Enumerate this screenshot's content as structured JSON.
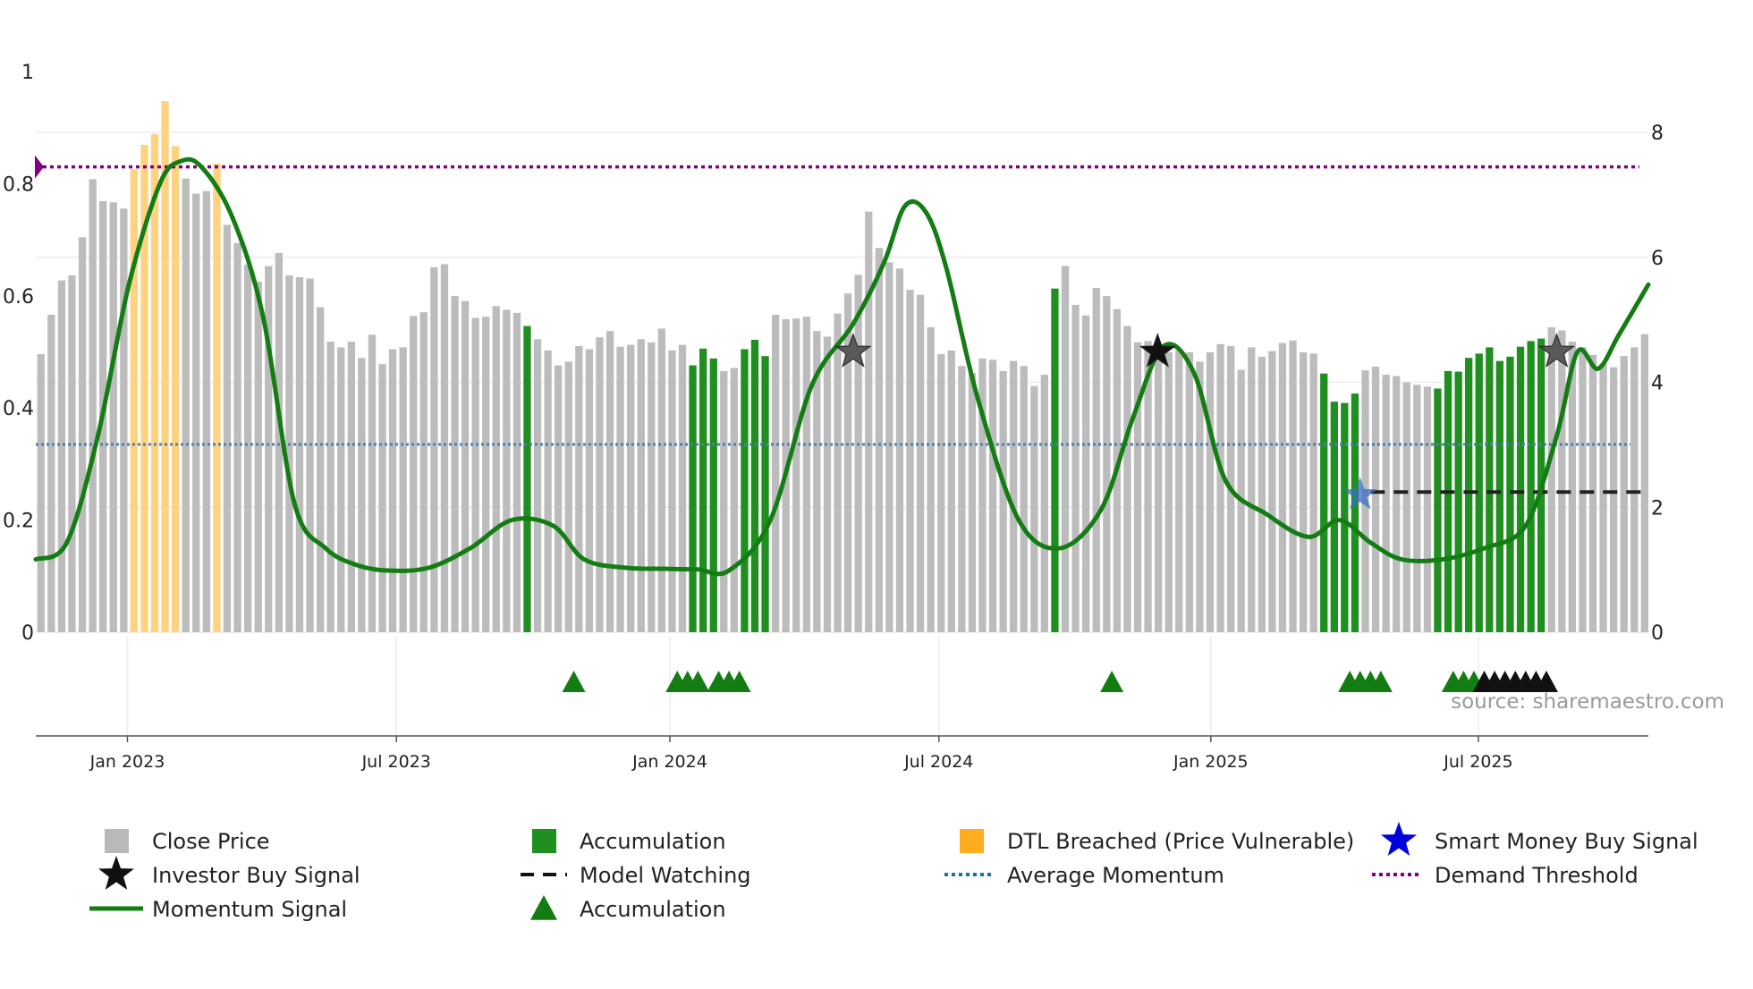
{
  "chart_data": {
    "type": "bar",
    "title": "",
    "source_text": "source: sharemaestro.com",
    "x_range": [
      "2022-10-29",
      "2025-10-24"
    ],
    "left_axis": {
      "ticks": [
        0,
        0.2,
        0.4,
        0.6,
        0.8,
        1
      ],
      "ylim": [
        0,
        1
      ],
      "role": "momentum / threshold scale"
    },
    "right_axis": {
      "ticks": [
        0,
        2,
        4,
        6,
        8
      ],
      "ylim": [
        0,
        8.9
      ],
      "role": "close price scale"
    },
    "x_ticks": [
      {
        "date": "2022-12-30",
        "label": "Jan 2023"
      },
      {
        "date": "2023-06-30",
        "label": "Jul 2023"
      },
      {
        "date": "2024-01-01",
        "label": "Jan 2024"
      },
      {
        "date": "2024-07-01",
        "label": "Jul 2024"
      },
      {
        "date": "2025-01-01",
        "label": "Jan 2025"
      },
      {
        "date": "2025-07-01",
        "label": "Jul 2025"
      }
    ],
    "bars": {
      "start_date": "2022-10-29",
      "interval_days": 7,
      "close_price": [
        4.45,
        5.08,
        5.63,
        5.71,
        6.32,
        7.25,
        6.9,
        6.88,
        6.78,
        7.41,
        7.8,
        7.97,
        8.5,
        7.78,
        7.26,
        7.02,
        7.06,
        7.5,
        6.52,
        6.23,
        5.88,
        5.61,
        5.86,
        6.07,
        5.71,
        5.68,
        5.66,
        5.2,
        4.65,
        4.56,
        4.65,
        4.39,
        4.76,
        4.29,
        4.53,
        4.56,
        5.06,
        5.12,
        5.84,
        5.89,
        5.38,
        5.3,
        5.03,
        5.05,
        5.22,
        5.16,
        5.11,
        4.9,
        4.69,
        4.51,
        4.27,
        4.33,
        4.58,
        4.53,
        4.72,
        4.82,
        4.57,
        4.6,
        4.69,
        4.64,
        4.86,
        4.51,
        4.6,
        4.27,
        4.54,
        4.38,
        4.18,
        4.23,
        4.53,
        4.68,
        4.42,
        5.08,
        5.01,
        5.02,
        5.05,
        4.82,
        4.73,
        5.1,
        5.42,
        5.72,
        6.73,
        6.15,
        5.92,
        5.82,
        5.48,
        5.4,
        4.88,
        4.45,
        4.51,
        4.26,
        4.15,
        4.38,
        4.36,
        4.18,
        4.34,
        4.26,
        3.94,
        4.12,
        5.5,
        5.86,
        5.24,
        5.07,
        5.51,
        5.38,
        5.17,
        4.9,
        4.64,
        4.66,
        4.62,
        4.48,
        4.51,
        4.48,
        4.33,
        4.48,
        4.61,
        4.58,
        4.2,
        4.56,
        4.41,
        4.5,
        4.63,
        4.67,
        4.48,
        4.46,
        4.14,
        3.69,
        3.67,
        3.82,
        4.19,
        4.25,
        4.12,
        4.1,
        4.0,
        3.96,
        3.93,
        3.9,
        4.18,
        4.17,
        4.39,
        4.46,
        4.56,
        4.34,
        4.41,
        4.57,
        4.66,
        4.7,
        4.88,
        4.83,
        4.65,
        4.56,
        4.44,
        4.3,
        4.24,
        4.42,
        4.56,
        4.77
      ],
      "accumulation_indices": [
        47,
        63,
        64,
        65,
        68,
        69,
        70,
        98,
        124,
        125,
        126,
        127,
        135,
        136,
        137,
        138,
        139,
        140,
        141,
        142,
        143,
        144,
        145
      ],
      "dtl_breached_indices": [
        9,
        10,
        11,
        12,
        13,
        17
      ]
    },
    "momentum_signal": {
      "x_dates": [
        "2022-10-29",
        "2022-11-19",
        "2022-12-10",
        "2022-12-31",
        "2023-01-21",
        "2023-02-04",
        "2023-02-18",
        "2023-03-11",
        "2023-04-01",
        "2023-04-22",
        "2023-05-13",
        "2023-06-03",
        "2023-06-24",
        "2023-07-22",
        "2023-08-19",
        "2023-09-16",
        "2023-10-14",
        "2023-11-04",
        "2023-12-02",
        "2023-12-30",
        "2024-01-20",
        "2024-02-10",
        "2024-03-09",
        "2024-04-06",
        "2024-05-04",
        "2024-05-25",
        "2024-06-08",
        "2024-06-22",
        "2024-07-06",
        "2024-07-27",
        "2024-08-24",
        "2024-09-21",
        "2024-10-19",
        "2024-11-09",
        "2024-11-30",
        "2024-12-21",
        "2025-01-11",
        "2025-02-08",
        "2025-03-08",
        "2025-03-29",
        "2025-04-19",
        "2025-05-10",
        "2025-06-07",
        "2025-07-05",
        "2025-08-02",
        "2025-08-23",
        "2025-09-06",
        "2025-09-20",
        "2025-10-04",
        "2025-10-24"
      ],
      "values": [
        0.13,
        0.16,
        0.35,
        0.62,
        0.8,
        0.84,
        0.83,
        0.74,
        0.56,
        0.23,
        0.15,
        0.12,
        0.11,
        0.115,
        0.15,
        0.2,
        0.19,
        0.13,
        0.115,
        0.113,
        0.112,
        0.11,
        0.2,
        0.44,
        0.55,
        0.66,
        0.76,
        0.75,
        0.65,
        0.42,
        0.2,
        0.15,
        0.22,
        0.38,
        0.51,
        0.46,
        0.27,
        0.21,
        0.17,
        0.2,
        0.16,
        0.13,
        0.13,
        0.15,
        0.19,
        0.35,
        0.5,
        0.47,
        0.53,
        0.62
      ]
    },
    "average_momentum": 0.335,
    "demand_threshold": 0.83,
    "model_watching": {
      "level": 0.25,
      "from_date": "2025-04-19",
      "to_date": "2025-10-24"
    },
    "investor_buy_signals": [
      {
        "date": "2024-05-04",
        "value": 0.5,
        "style": "gray"
      },
      {
        "date": "2024-11-26",
        "value": 0.5,
        "style": "black"
      },
      {
        "date": "2025-08-23",
        "value": 0.5,
        "style": "gray"
      }
    ],
    "smart_money_buy_signals": [
      {
        "date": "2025-04-12",
        "value": 0.245
      }
    ],
    "accumulation_triangles": {
      "green": [
        "2023-10-28",
        "2024-01-06",
        "2024-01-13",
        "2024-01-20",
        "2024-02-03",
        "2024-02-10",
        "2024-02-17",
        "2024-10-26",
        "2025-04-05",
        "2025-04-12",
        "2025-04-19",
        "2025-04-26",
        "2025-06-14",
        "2025-06-21",
        "2025-06-28"
      ],
      "dark": [
        "2025-07-05",
        "2025-07-12",
        "2025-07-19",
        "2025-07-26",
        "2025-08-02",
        "2025-08-09",
        "2025-08-16"
      ]
    },
    "legend": [
      {
        "label": "Close Price",
        "kind": "square",
        "color": "#b9b9b9"
      },
      {
        "label": "Accumulation",
        "kind": "square",
        "color": "#1f8f1f"
      },
      {
        "label": "DTL Breached (Price Vulnerable)",
        "kind": "square",
        "color": "#ffad1f"
      },
      {
        "label": "Smart Money Buy Signal",
        "kind": "star",
        "color": "#0000dd"
      },
      {
        "label": "Investor Buy Signal",
        "kind": "star",
        "color": "#111111"
      },
      {
        "label": "Model Watching",
        "kind": "dash",
        "color": "#111111"
      },
      {
        "label": "Average Momentum",
        "kind": "dot",
        "color": "#1f6fa5"
      },
      {
        "label": "Demand Threshold",
        "kind": "dot",
        "color": "#800080"
      },
      {
        "label": "Momentum Signal",
        "kind": "line",
        "color": "#137d13"
      },
      {
        "label": "Accumulation",
        "kind": "triangle",
        "color": "#137d13"
      }
    ],
    "colors": {
      "close": "#bcbcbc",
      "accumulation": "#1f8f1f",
      "dtl": "#ffd27f",
      "momentum": "#137d13",
      "avg_momentum": "#4f7fa8",
      "threshold": "#800080",
      "grid": "#ebebeb"
    }
  }
}
